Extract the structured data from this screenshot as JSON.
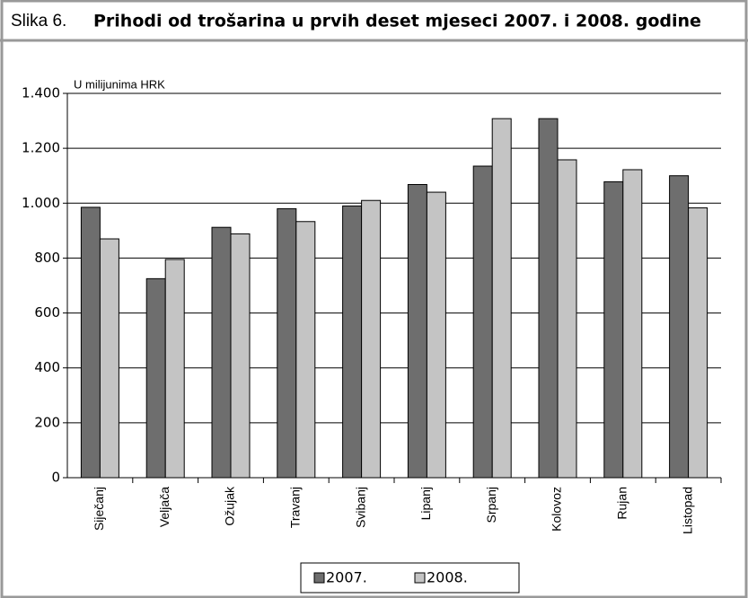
{
  "chart_data": {
    "type": "bar",
    "figure_label": "Slika 6.",
    "title": "Prihodi od trošarina u prvih deset mjeseci 2007. i 2008. godine",
    "y_axis_label": "U milijunima HRK",
    "categories": [
      "Siječanj",
      "Veljača",
      "Ožujak",
      "Travanj",
      "Svibanj",
      "Lipanj",
      "Srpanj",
      "Kolovoz",
      "Rujan",
      "Listopad"
    ],
    "series": [
      {
        "name": "2007.",
        "color": "#6e6e6e",
        "values": [
          985,
          725,
          912,
          980,
          990,
          1068,
          1135,
          1308,
          1078,
          1100
        ]
      },
      {
        "name": "2008.",
        "color": "#c4c4c4",
        "values": [
          870,
          795,
          888,
          933,
          1010,
          1040,
          1308,
          1158,
          1122,
          983
        ]
      }
    ],
    "ylim": [
      0,
      1400
    ],
    "yticks": [
      0,
      200,
      400,
      600,
      800,
      {
        "value": 1000,
        "label": "1.000"
      },
      {
        "value": 1200,
        "label": "1.200"
      },
      {
        "value": 1400,
        "label": "1.400"
      }
    ],
    "grid": true,
    "legend": "bottom"
  }
}
